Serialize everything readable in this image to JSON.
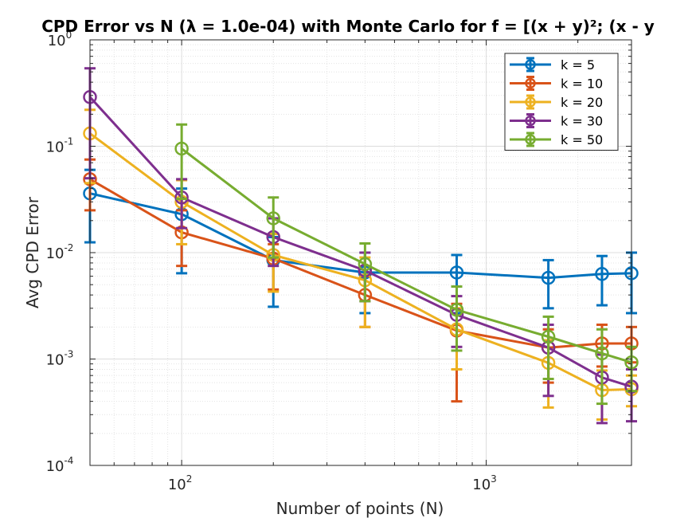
{
  "chart_data": {
    "type": "line",
    "title": "CPD Error vs N (λ = 1.0e-04) with Monte Carlo for f = [(x + y)²; (x - y",
    "xlabel": "Number of points (N)",
    "ylabel": "Avg CPD Error",
    "xscale": "log",
    "yscale": "log",
    "xlim": [
      50,
      3000
    ],
    "ylim": [
      0.0001,
      1
    ],
    "grid": true,
    "legend_position": "top-right",
    "x_ticks": [
      {
        "value": 100,
        "base": "10",
        "exp": "2"
      },
      {
        "value": 1000,
        "base": "10",
        "exp": "3"
      }
    ],
    "y_ticks": [
      {
        "value": 1,
        "base": "10",
        "exp": "0"
      },
      {
        "value": 0.1,
        "base": "10",
        "exp": "-1"
      },
      {
        "value": 0.01,
        "base": "10",
        "exp": "-2"
      },
      {
        "value": 0.001,
        "base": "10",
        "exp": "-3"
      },
      {
        "value": 0.0001,
        "base": "10",
        "exp": "-4"
      }
    ],
    "series": [
      {
        "name": "k = 5",
        "color": "#0072BD",
        "x": [
          50,
          100,
          200,
          400,
          800,
          1600,
          2400,
          3000
        ],
        "y": [
          0.036,
          0.023,
          0.0085,
          0.0065,
          0.0065,
          0.0058,
          0.0063,
          0.0064
        ],
        "y_low": [
          0.0125,
          0.0064,
          0.0031,
          0.0027,
          0.0027,
          0.003,
          0.0032,
          0.0027
        ],
        "y_high": [
          0.06,
          0.04,
          0.014,
          0.01,
          0.0095,
          0.0085,
          0.0093,
          0.01
        ]
      },
      {
        "name": "k = 10",
        "color": "#D95319",
        "x": [
          50,
          100,
          200,
          400,
          800,
          1600,
          2400,
          3000
        ],
        "y": [
          0.049,
          0.0155,
          0.0088,
          0.004,
          0.00185,
          0.00128,
          0.0014,
          0.0014
        ],
        "y_low": [
          0.025,
          0.0075,
          0.0045,
          0.002,
          0.0004,
          0.0006,
          0.00085,
          0.00093
        ],
        "y_high": [
          0.075,
          0.025,
          0.012,
          0.006,
          0.0033,
          0.0019,
          0.0021,
          0.002
        ]
      },
      {
        "name": "k = 20",
        "color": "#EDB120",
        "x": [
          50,
          100,
          200,
          400,
          800,
          1600,
          2400,
          3000
        ],
        "y": [
          0.132,
          0.03,
          0.0095,
          0.0055,
          0.0019,
          0.00092,
          0.00051,
          0.00052
        ],
        "y_low": [
          0.045,
          0.012,
          0.0043,
          0.002,
          0.0008,
          0.00035,
          0.00027,
          0.00036
        ],
        "y_high": [
          0.22,
          0.048,
          0.015,
          0.009,
          0.003,
          0.0015,
          0.00078,
          0.0007
        ]
      },
      {
        "name": "k = 30",
        "color": "#7E2F8E",
        "x": [
          50,
          100,
          200,
          400,
          800,
          1600,
          2400,
          3000
        ],
        "y": [
          0.29,
          0.033,
          0.014,
          0.0068,
          0.0026,
          0.00128,
          0.00067,
          0.00055
        ],
        "y_low": [
          0.05,
          0.017,
          0.0075,
          0.0035,
          0.0013,
          0.00045,
          0.00025,
          0.00026
        ],
        "y_high": [
          0.54,
          0.049,
          0.021,
          0.01,
          0.0039,
          0.0021,
          0.0011,
          0.0008
        ]
      },
      {
        "name": "k = 50",
        "color": "#77AC30",
        "x": [
          100,
          200,
          400,
          800,
          1600,
          2400,
          3000
        ],
        "y": [
          0.095,
          0.021,
          0.0078,
          0.0029,
          0.00162,
          0.00113,
          0.00093
        ],
        "y_low": [
          0.032,
          0.009,
          0.0035,
          0.0012,
          0.00065,
          0.00038,
          0.0005
        ],
        "y_high": [
          0.16,
          0.033,
          0.0122,
          0.0048,
          0.0025,
          0.0019,
          0.0013
        ]
      }
    ]
  }
}
